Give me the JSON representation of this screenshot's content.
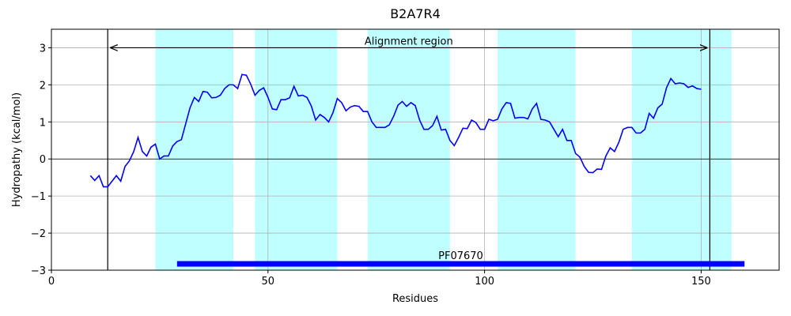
{
  "chart_data": {
    "type": "line",
    "title": "B2A7R4",
    "xlabel": "Residues",
    "ylabel": "Hydropathy (kcal/mol)",
    "x": [
      9,
      10,
      11,
      12,
      13,
      14,
      15,
      16,
      17,
      18,
      19,
      20,
      21,
      22,
      23,
      24,
      25,
      26,
      27,
      28,
      29,
      30,
      31,
      32,
      33,
      34,
      35,
      36,
      37,
      38,
      39,
      40,
      41,
      42,
      43,
      44,
      45,
      46,
      47,
      48,
      49,
      50,
      51,
      52,
      53,
      54,
      55,
      56,
      57,
      58,
      59,
      60,
      61,
      62,
      63,
      64,
      65,
      66,
      67,
      68,
      69,
      70,
      71,
      72,
      73,
      74,
      75,
      76,
      77,
      78,
      79,
      80,
      81,
      82,
      83,
      84,
      85,
      86,
      87,
      88,
      89,
      90,
      91,
      92,
      93,
      94,
      95,
      96,
      97,
      98,
      99,
      100,
      101,
      102,
      103,
      104,
      105,
      106,
      107,
      108,
      109,
      110,
      111,
      112,
      113,
      114,
      115,
      116,
      117,
      118,
      119,
      120,
      121,
      122,
      123,
      124,
      125,
      126,
      127,
      128,
      129,
      130,
      131,
      132,
      133,
      134,
      135,
      136,
      137,
      138,
      139,
      140,
      141,
      142,
      143,
      144,
      145,
      146,
      147,
      148,
      149,
      150
    ],
    "values": [
      -0.45,
      -0.58,
      -0.45,
      -0.75,
      -0.75,
      -0.6,
      -0.45,
      -0.6,
      -0.2,
      -0.05,
      0.2,
      0.58,
      0.2,
      0.08,
      0.32,
      0.4,
      0.0,
      0.08,
      0.08,
      0.35,
      0.47,
      0.52,
      0.95,
      1.38,
      1.66,
      1.55,
      1.82,
      1.8,
      1.65,
      1.66,
      1.72,
      1.9,
      2.0,
      2.0,
      1.9,
      2.28,
      2.26,
      2.02,
      1.72,
      1.85,
      1.92,
      1.66,
      1.35,
      1.33,
      1.6,
      1.6,
      1.65,
      1.96,
      1.7,
      1.72,
      1.66,
      1.43,
      1.05,
      1.2,
      1.12,
      1.0,
      1.25,
      1.63,
      1.52,
      1.3,
      1.4,
      1.44,
      1.42,
      1.28,
      1.28,
      1.0,
      0.85,
      0.85,
      0.85,
      0.92,
      1.15,
      1.45,
      1.55,
      1.42,
      1.52,
      1.44,
      1.05,
      0.8,
      0.8,
      0.9,
      1.15,
      0.78,
      0.8,
      0.5,
      0.36,
      0.58,
      0.83,
      0.82,
      1.05,
      0.98,
      0.8,
      0.8,
      1.07,
      1.03,
      1.07,
      1.35,
      1.52,
      1.5,
      1.1,
      1.12,
      1.12,
      1.08,
      1.35,
      1.5,
      1.07,
      1.05,
      1.0,
      0.8,
      0.6,
      0.8,
      0.5,
      0.5,
      0.15,
      0.05,
      -0.2,
      -0.36,
      -0.37,
      -0.27,
      -0.28,
      0.08,
      0.3,
      0.2,
      0.45,
      0.8,
      0.85,
      0.85,
      0.7,
      0.7,
      0.8,
      1.23,
      1.1,
      1.38,
      1.48,
      1.92,
      2.17,
      2.03,
      2.05,
      2.03,
      1.93,
      1.97,
      1.9,
      1.88
    ],
    "color": "#0000ff",
    "xlim": [
      0,
      168
    ],
    "ylim": [
      -3,
      3.5
    ],
    "xticks": [
      0,
      50,
      100,
      150
    ],
    "yticks": [
      {
        "value": -3,
        "label": "−3"
      },
      {
        "value": -2,
        "label": "−2"
      },
      {
        "value": -1,
        "label": "−1"
      },
      0,
      1,
      2,
      3
    ],
    "grid": true,
    "span_color": "#bfffff",
    "spans": [
      {
        "start": 24,
        "end": 42
      },
      {
        "start": 47,
        "end": 66
      },
      {
        "start": 73,
        "end": 92
      },
      {
        "start": 103,
        "end": 121
      },
      {
        "start": 134,
        "end": 157
      }
    ],
    "vlines": [
      13,
      152
    ],
    "annotation": {
      "text": "Alignment region",
      "start": 13,
      "end": 152,
      "y": 3
    },
    "domain": {
      "label": "PF07670",
      "start": 29,
      "end": 160,
      "y": -2.83,
      "color": "#0000ff"
    }
  }
}
